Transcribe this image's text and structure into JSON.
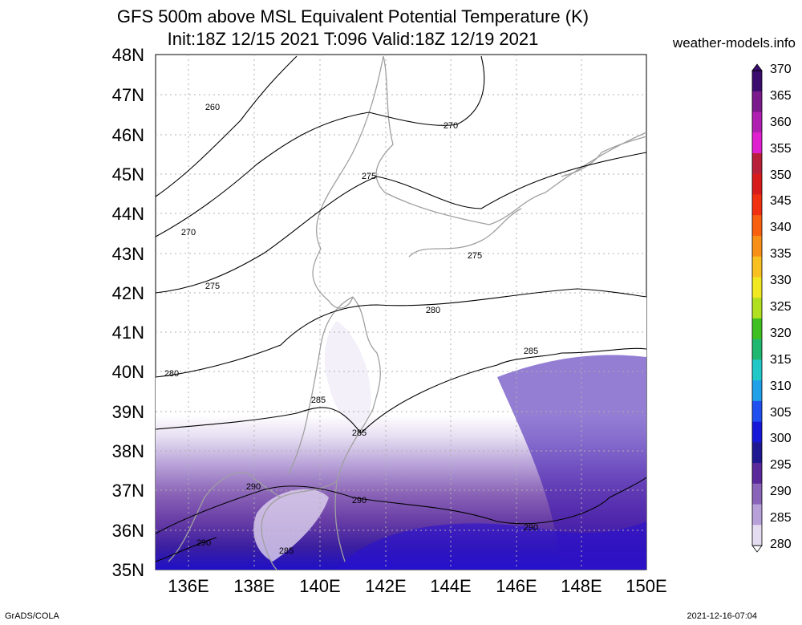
{
  "title_line1": "GFS 500m above MSL Equivalent Potential Temperature (K)",
  "title_line2": "Init:18Z 12/15 2021 T:096 Valid:18Z 12/19 2021",
  "site": "weather-models.info",
  "footer_left": "GrADS/COLA",
  "footer_right": "2021-12-16-07:04",
  "y_axis_labels": [
    "48N",
    "47N",
    "46N",
    "45N",
    "44N",
    "43N",
    "42N",
    "41N",
    "40N",
    "39N",
    "38N",
    "37N",
    "36N",
    "35N"
  ],
  "x_axis_labels": [
    "136E",
    "138E",
    "140E",
    "142E",
    "144E",
    "146E",
    "148E",
    "150E"
  ],
  "colorbar": {
    "labels": [
      "370",
      "365",
      "360",
      "355",
      "350",
      "345",
      "340",
      "335",
      "330",
      "325",
      "320",
      "315",
      "310",
      "305",
      "300",
      "295",
      "290",
      "285",
      "280"
    ],
    "colors": [
      "#3a0c6e",
      "#7b1a8c",
      "#b020b0",
      "#e020d0",
      "#b8203a",
      "#d81c1c",
      "#f03010",
      "#f86010",
      "#f89018",
      "#f8c020",
      "#f0e820",
      "#b0e020",
      "#40c020",
      "#20b870",
      "#20c8c8",
      "#20a0e8",
      "#2050f0",
      "#1818d8",
      "#201890",
      "#5a2a9a",
      "#8a64b8",
      "#b8a0d8",
      "#e4dcf0"
    ]
  },
  "contour_labels": [
    "260",
    "270",
    "270",
    "275",
    "275",
    "275",
    "280",
    "280",
    "285",
    "285",
    "285",
    "285",
    "290",
    "290",
    "290",
    "290",
    "285"
  ],
  "colors": {
    "land_outline": "#a0a0a0",
    "contour": "#000000",
    "grid": "#b0b0b0"
  }
}
